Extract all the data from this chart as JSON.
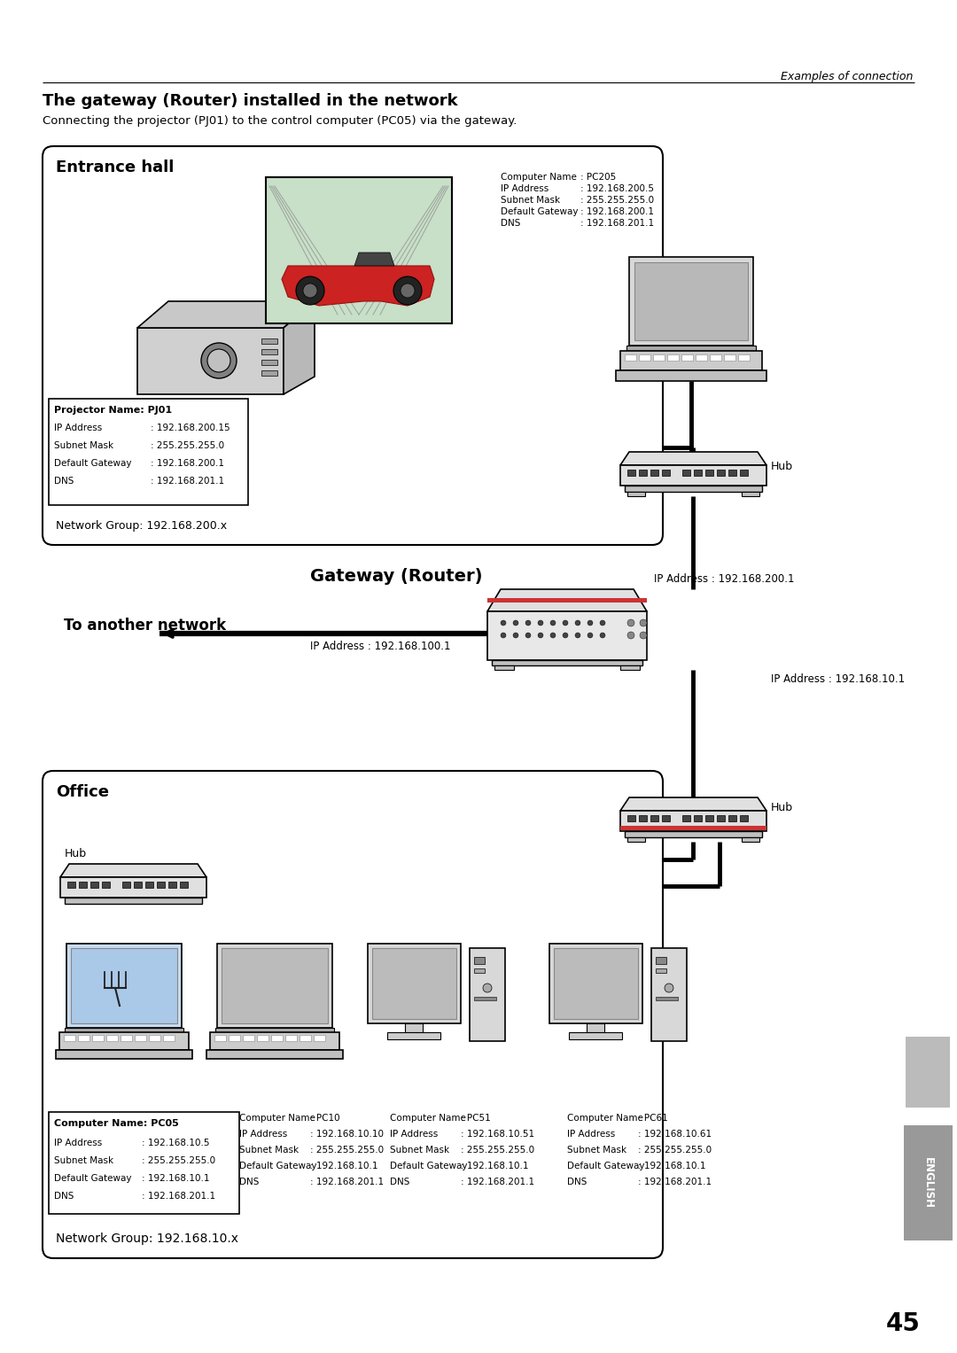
{
  "page_bg": "#ffffff",
  "header_text": "Examples of connection",
  "title": "The gateway (Router) installed in the network",
  "subtitle": "Connecting the projector (PJ01) to the control computer (PC05) via the gateway.",
  "entrance_hall_label": "Entrance hall",
  "network_group_200": "Network Group: 192.168.200.x",
  "network_group_10": "Network Group: 192.168.10.x",
  "gateway_label": "Gateway (Router)",
  "gateway_ip_top": "IP Address : 192.168.200.1",
  "gateway_ip_bottom": "IP Address : 192.168.10.1",
  "another_network_label": "To another network",
  "another_network_ip": "IP Address : 192.168.100.1",
  "office_label": "Office",
  "hub_label": "Hub",
  "projector_name": "Projector Name: PJ01",
  "projector_lines": [
    [
      "IP Address",
      ": 192.168.200.15"
    ],
    [
      "Subnet Mask",
      ": 255.255.255.0"
    ],
    [
      "Default Gateway",
      ": 192.168.200.1"
    ],
    [
      "DNS",
      ": 192.168.201.1"
    ]
  ],
  "pc205_lines": [
    [
      "Computer Name",
      ": PC205"
    ],
    [
      "IP Address",
      ": 192.168.200.5"
    ],
    [
      "Subnet Mask",
      ": 255.255.255.0"
    ],
    [
      "Default Gateway",
      ": 192.168.200.1"
    ],
    [
      "DNS",
      ": 192.168.201.1"
    ]
  ],
  "pc05_name": "Computer Name: PC05",
  "pc05_lines": [
    [
      "IP Address",
      ": 192.168.10.5"
    ],
    [
      "Subnet Mask",
      ": 255.255.255.0"
    ],
    [
      "Default Gateway",
      ": 192.168.10.1"
    ],
    [
      "DNS",
      ": 192.168.201.1"
    ]
  ],
  "pc10_lines": [
    [
      "Computer Name",
      ": PC10"
    ],
    [
      "IP Address",
      ": 192.168.10.10"
    ],
    [
      "Subnet Mask",
      ": 255.255.255.0"
    ],
    [
      "Default Gateway",
      ": 192.168.10.1"
    ],
    [
      "DNS",
      ": 192.168.201.1"
    ]
  ],
  "pc51_lines": [
    [
      "Computer Name",
      ": PC51"
    ],
    [
      "IP Address",
      ": 192.168.10.51"
    ],
    [
      "Subnet Mask",
      ": 255.255.255.0"
    ],
    [
      "Default Gateway",
      ": 192.168.10.1"
    ],
    [
      "DNS",
      ": 192.168.201.1"
    ]
  ],
  "pc61_lines": [
    [
      "Computer Name",
      ": PC61"
    ],
    [
      "IP Address",
      ": 192.168.10.61"
    ],
    [
      "Subnet Mask",
      ": 255.255.255.0"
    ],
    [
      "Default Gateway",
      ": 192.168.10.1"
    ],
    [
      "DNS",
      ": 192.168.201.1"
    ]
  ],
  "page_number": "45",
  "english_label": "ENGLISH"
}
